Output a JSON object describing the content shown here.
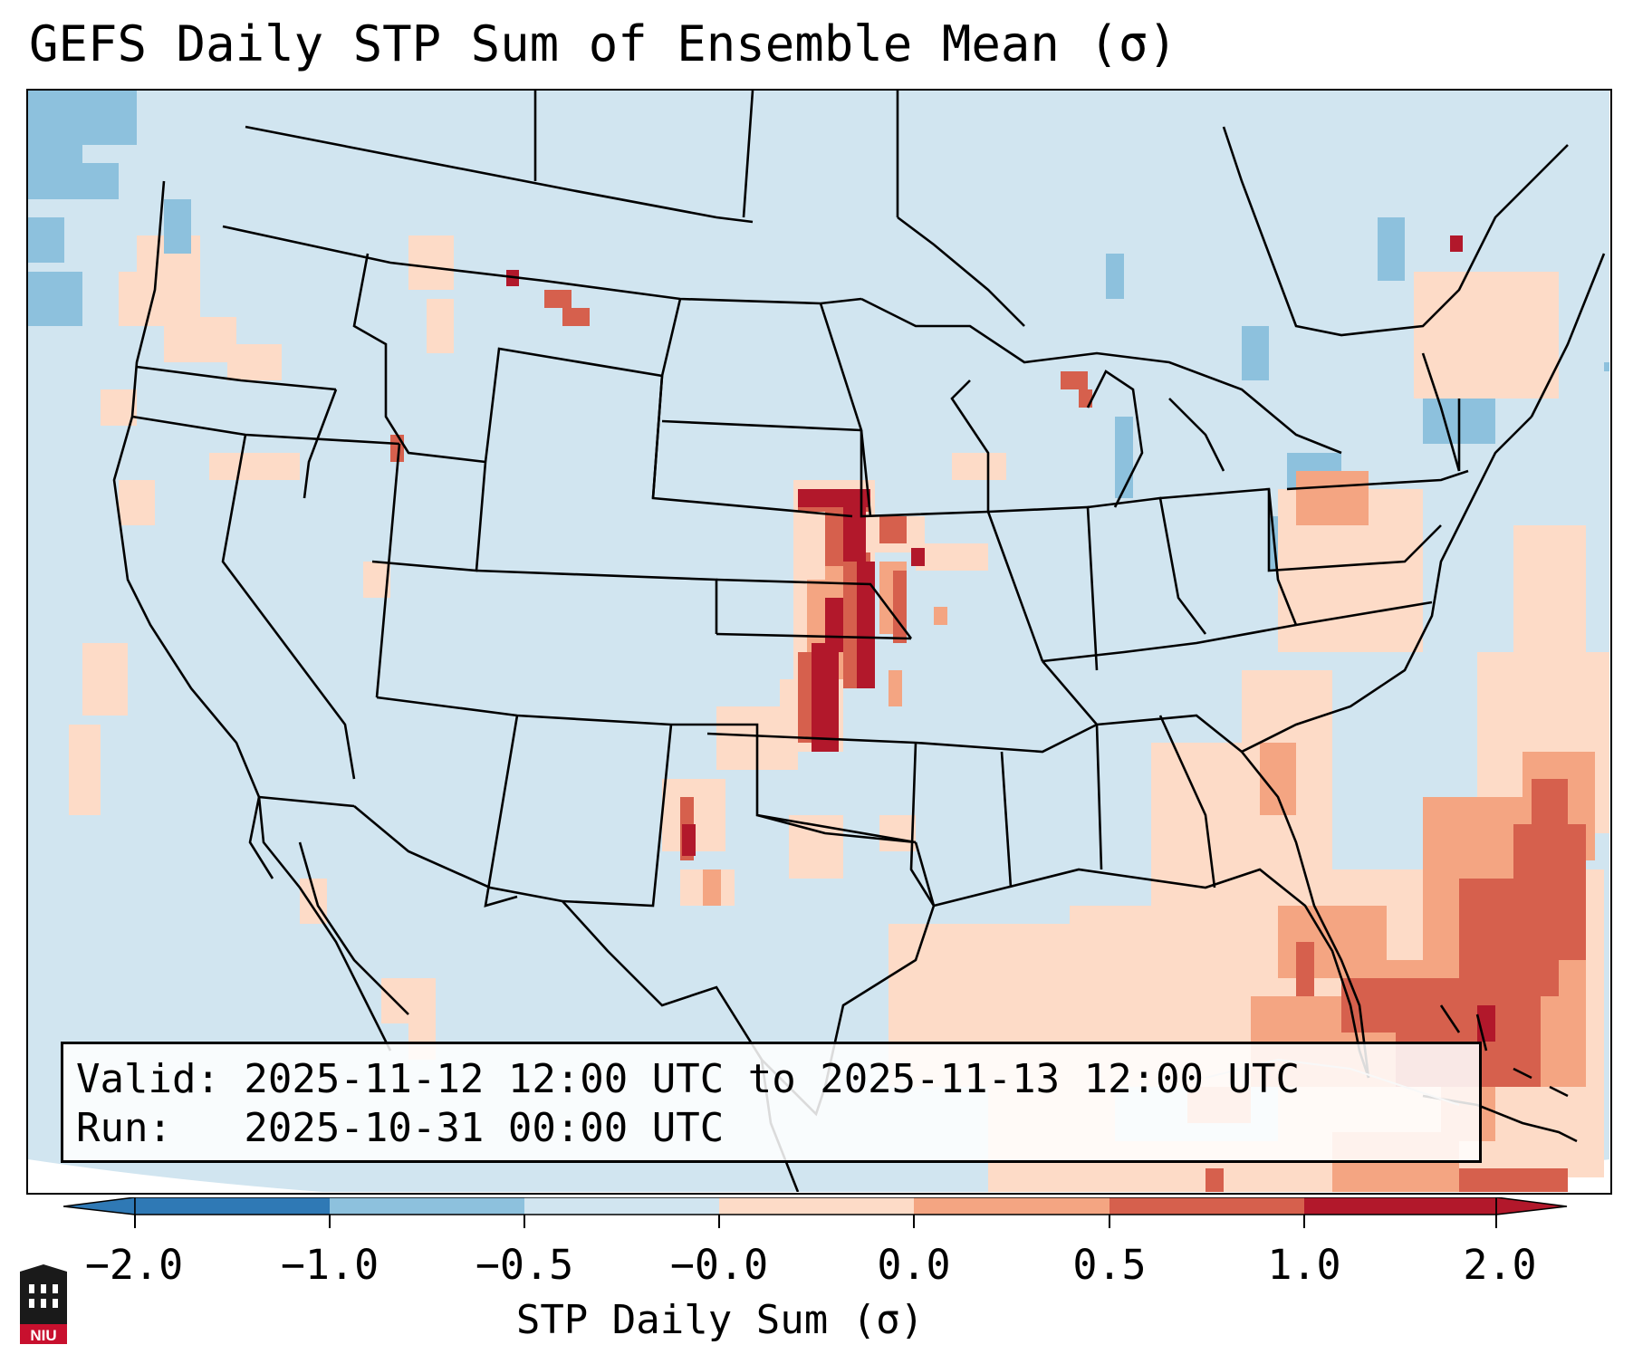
{
  "title": "GEFS Daily STP Sum of Ensemble Mean (σ)",
  "info": {
    "valid_line": "Valid: 2025-11-12 12:00 UTC to 2025-11-13 12:00 UTC",
    "run_line": "Run:   2025-10-31 00:00 UTC"
  },
  "colorbar": {
    "label": "STP Daily Sum (σ)",
    "ticks": [
      "−2.0",
      "−1.0",
      "−0.5",
      "−0.0",
      "0.0",
      "0.5",
      "1.0",
      "2.0"
    ],
    "colors": [
      "#2f79b5",
      "#8dc1dd",
      "#d1e5f0",
      "#fddbc7",
      "#f4a582",
      "#d6604d",
      "#b2182b"
    ],
    "extend": "both"
  },
  "map": {
    "background_color": "#d1e5f0",
    "features": [
      "coastlines",
      "us-state-borders",
      "country-borders"
    ],
    "positive_anomaly_areas": [
      "Kansas–Nebraska–Oklahoma corridor (>2.0)",
      "West Texas (1.0–2.0)",
      "Florida and Bahamas / western Atlantic (0.5–2.0)",
      "Western Nebraska (1.0)",
      "Pacific Northwest coast (0.0–0.5)"
    ]
  },
  "logo": {
    "text": "NIU"
  }
}
